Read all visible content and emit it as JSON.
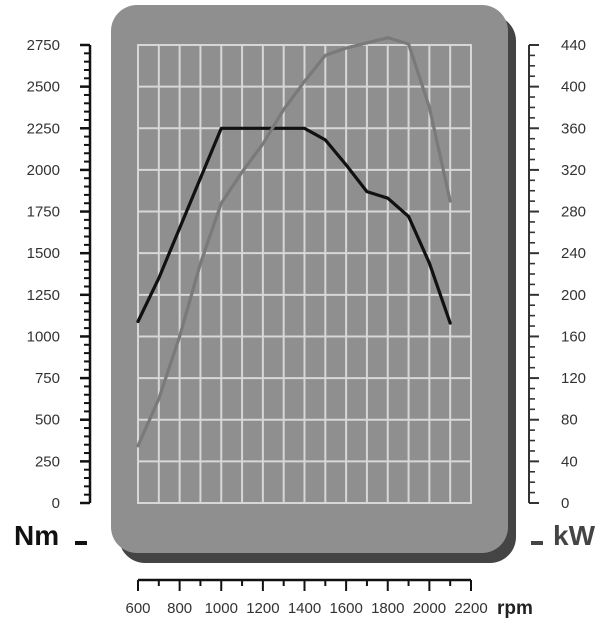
{
  "chart_data": {
    "type": "line",
    "title": "",
    "xlabel": "rpm",
    "x_ticks": [
      600,
      800,
      1000,
      1200,
      1400,
      1600,
      1800,
      2000,
      2200
    ],
    "xlim": [
      600,
      2200
    ],
    "left_axis": {
      "label": "Nm",
      "ticks": [
        0,
        250,
        500,
        750,
        1000,
        1250,
        1500,
        1750,
        2000,
        2250,
        2500,
        2750
      ],
      "ylim": [
        0,
        2750
      ]
    },
    "right_axis": {
      "label": "kW",
      "ticks": [
        0,
        40,
        80,
        120,
        160,
        200,
        240,
        280,
        320,
        360,
        400,
        440
      ],
      "ylim": [
        0,
        440
      ]
    },
    "grid": true,
    "series": [
      {
        "axis": "left",
        "color": "#111111",
        "x": [
          600,
          700,
          800,
          900,
          1000,
          1200,
          1400,
          1500,
          1600,
          1700,
          1800,
          1900,
          2000,
          2100
        ],
        "values": [
          1090,
          1350,
          1650,
          1950,
          2250,
          2250,
          2250,
          2180,
          2030,
          1870,
          1830,
          1720,
          1440,
          1080
        ]
      },
      {
        "axis": "right",
        "color": "#7a7a7a",
        "x": [
          600,
          700,
          800,
          900,
          1000,
          1100,
          1200,
          1300,
          1400,
          1500,
          1600,
          1700,
          1800,
          1900,
          2000,
          2100
        ],
        "values": [
          55,
          100,
          160,
          230,
          288,
          318,
          345,
          378,
          405,
          430,
          437,
          442,
          447,
          441,
          380,
          290
        ]
      }
    ],
    "colors": {
      "panel": "#8f8f8f",
      "panel_shadow": "#444444",
      "grid_line": "#d7d7d7",
      "unit_color": "#444444"
    }
  }
}
